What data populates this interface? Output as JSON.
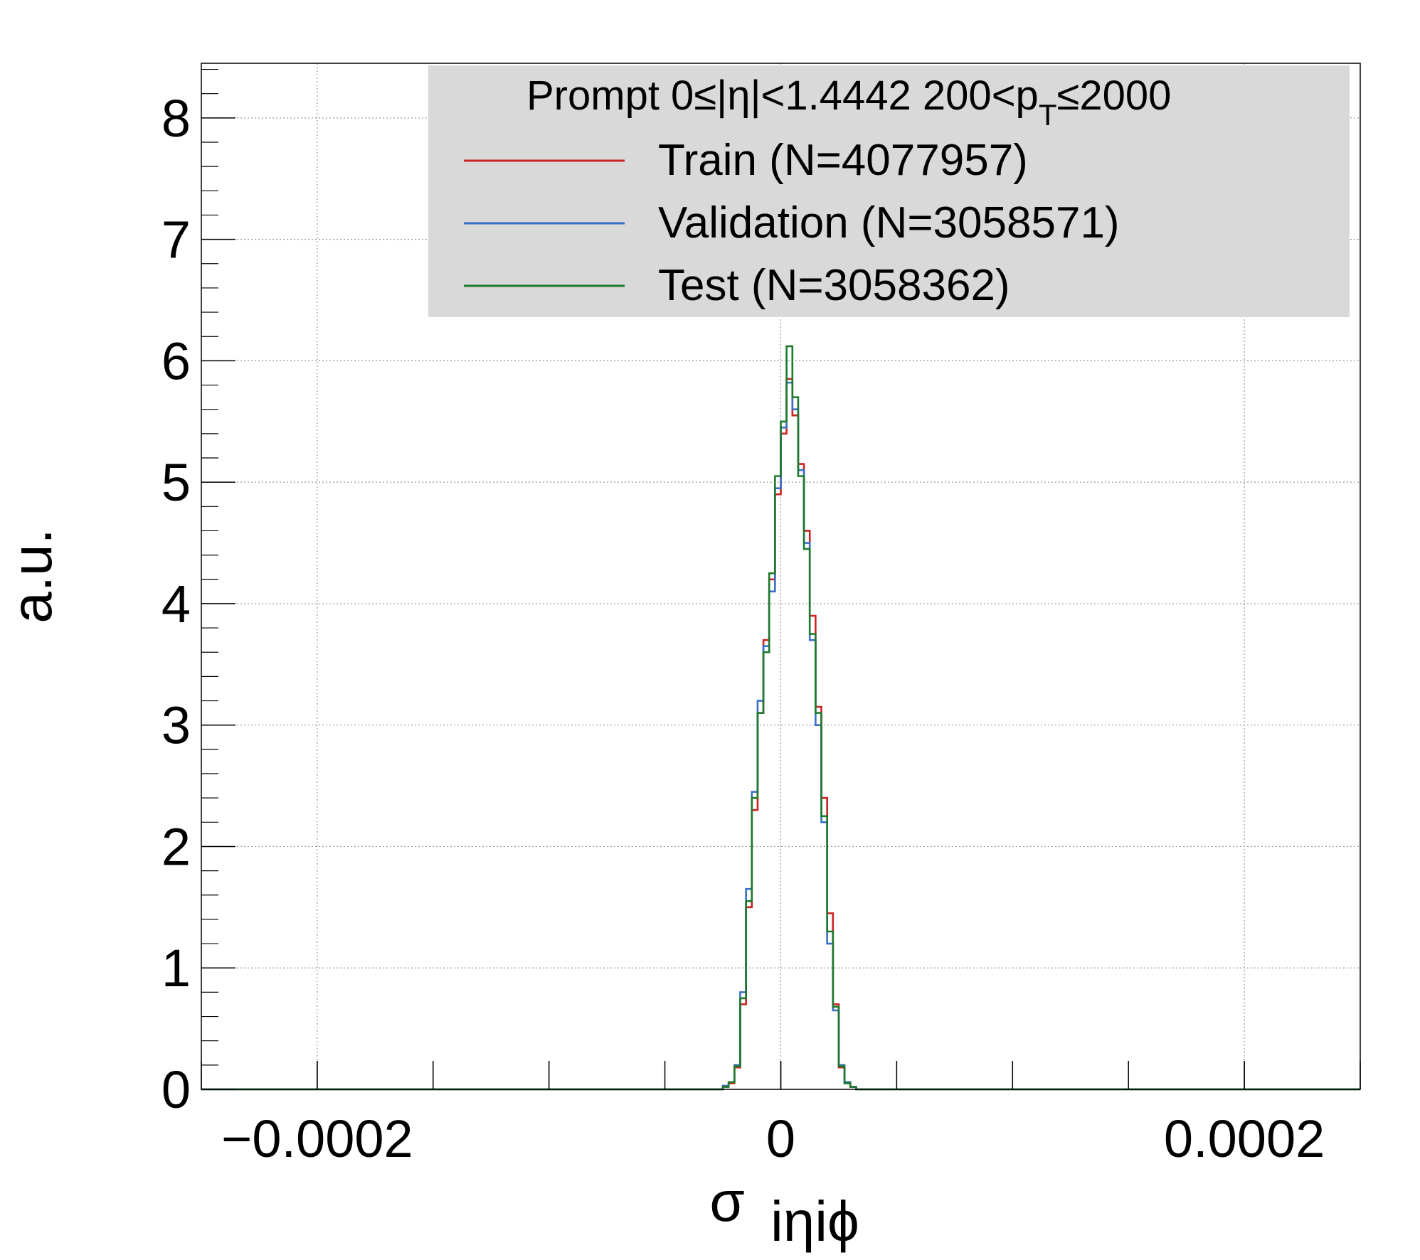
{
  "chart_data": {
    "type": "histogram",
    "ylabel": "a.u.",
    "xlabel_symbol": "σ",
    "xlabel_subscript": "iηiϕ",
    "xlim": [
      -0.00025,
      0.00025
    ],
    "ylim": [
      0,
      8.45
    ],
    "grid": true,
    "x_ticks": [
      {
        "value": -0.0002,
        "label": "−0.0002"
      },
      {
        "value": 0,
        "label": "0"
      },
      {
        "value": 0.0002,
        "label": "0.0002"
      }
    ],
    "y_ticks": [
      {
        "value": 0,
        "label": "0"
      },
      {
        "value": 1,
        "label": "1"
      },
      {
        "value": 2,
        "label": "2"
      },
      {
        "value": 3,
        "label": "3"
      },
      {
        "value": 4,
        "label": "4"
      },
      {
        "value": 5,
        "label": "5"
      },
      {
        "value": 6,
        "label": "6"
      },
      {
        "value": 7,
        "label": "7"
      },
      {
        "value": 8,
        "label": "8"
      }
    ],
    "bin_edges_start": -2.5e-05,
    "bin_width": 2.5e-06,
    "legend": {
      "placement": "top-right",
      "header_main": "Prompt  0≤|η|<1.4442  200<p",
      "header_sub": "T",
      "header_tail": "≤2000"
    },
    "series": [
      {
        "name": "Train (N=4077957)",
        "color": "#cc2222",
        "values": [
          0.02,
          0.05,
          0.18,
          0.7,
          1.5,
          2.3,
          3.1,
          3.7,
          4.2,
          4.9,
          5.4,
          5.85,
          5.55,
          5.15,
          4.6,
          3.9,
          3.15,
          2.4,
          1.45,
          0.7,
          0.18,
          0.05,
          0.02
        ]
      },
      {
        "name": "Validation (N=3058571)",
        "color": "#3a6fc4",
        "values": [
          0.03,
          0.06,
          0.2,
          0.8,
          1.65,
          2.45,
          3.2,
          3.65,
          4.1,
          4.95,
          5.45,
          5.82,
          5.6,
          5.1,
          4.5,
          3.7,
          3.0,
          2.2,
          1.2,
          0.65,
          0.2,
          0.06,
          0.02
        ]
      },
      {
        "name": "Test (N=3058362)",
        "color": "#1c7a2c",
        "values": [
          0.02,
          0.06,
          0.19,
          0.75,
          1.55,
          2.4,
          3.1,
          3.6,
          4.25,
          5.05,
          5.5,
          6.12,
          5.7,
          5.05,
          4.45,
          3.75,
          3.1,
          2.25,
          1.3,
          0.68,
          0.19,
          0.05,
          0.02
        ]
      }
    ]
  }
}
